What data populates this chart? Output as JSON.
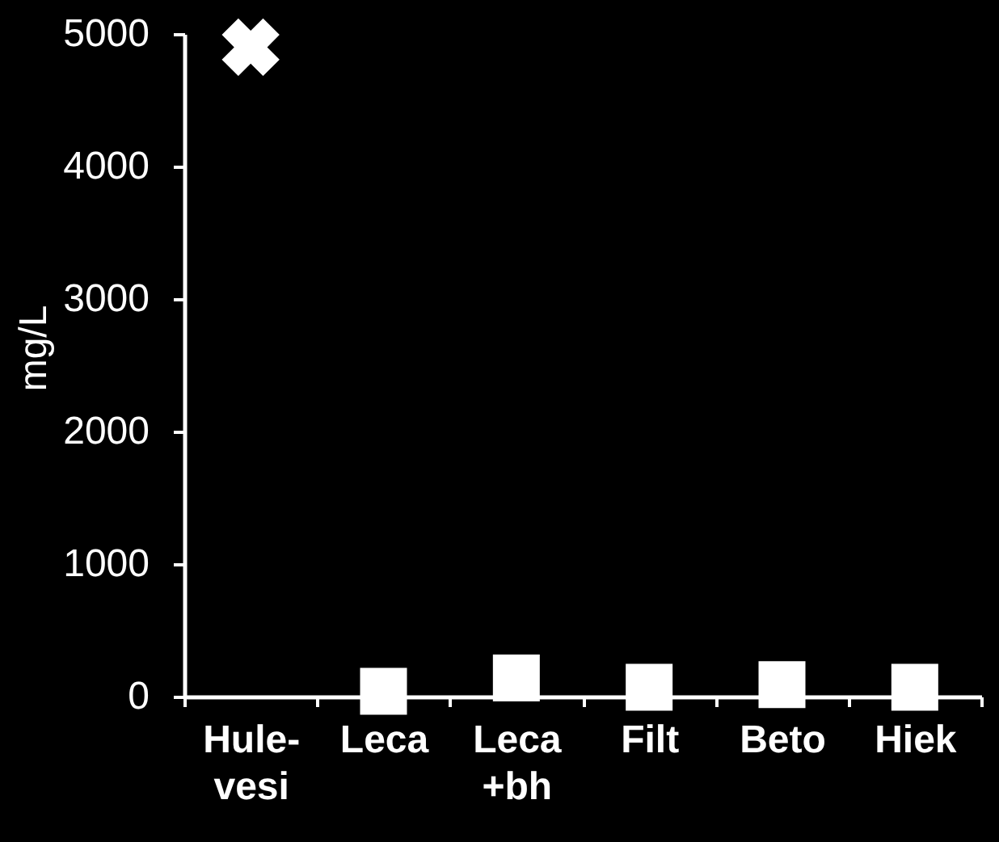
{
  "chart_data": {
    "type": "scatter",
    "ylabel": "mg/L",
    "categories": [
      "Hule-vesi",
      "Leca",
      "Leca +bh",
      "Filt",
      "Beto",
      "Hiek"
    ],
    "series": [
      {
        "color": "#ffffff",
        "marker": "cross",
        "values": [
          4900,
          null,
          null,
          null,
          null,
          null
        ]
      },
      {
        "color": "#ffffff",
        "marker": "square",
        "values": [
          null,
          40,
          140,
          70,
          90,
          70
        ]
      }
    ],
    "ylim": [
      0,
      5000
    ],
    "yticks": [
      0,
      1000,
      2000,
      3000,
      4000,
      5000
    ]
  }
}
